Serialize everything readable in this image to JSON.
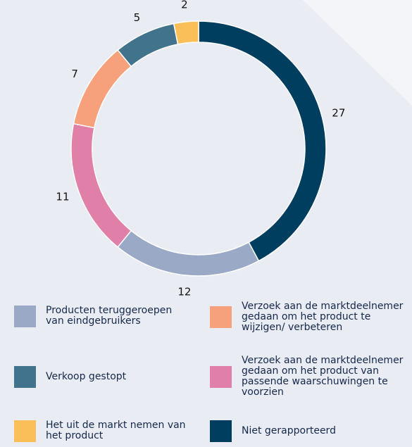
{
  "chart_data": {
    "type": "donut",
    "categories": [
      "Niet gerapporteerd",
      "Producten teruggeroepen van eindgebruikers",
      "Verzoek aan de marktdeelnemer gedaan om het product van passende waarschuwingen te voorzien",
      "Verzoek aan de marktdeelnemer gedaan om het product te wijzigen/ verbeteren",
      "Verkoop gestopt",
      "Het uit de markt nemen van het product"
    ],
    "values": [
      27,
      12,
      11,
      7,
      5,
      2
    ],
    "colors": [
      "#003e5f",
      "#9aa9c6",
      "#e07fa8",
      "#f6a17b",
      "#41748c",
      "#fbbf5a"
    ]
  }
}
